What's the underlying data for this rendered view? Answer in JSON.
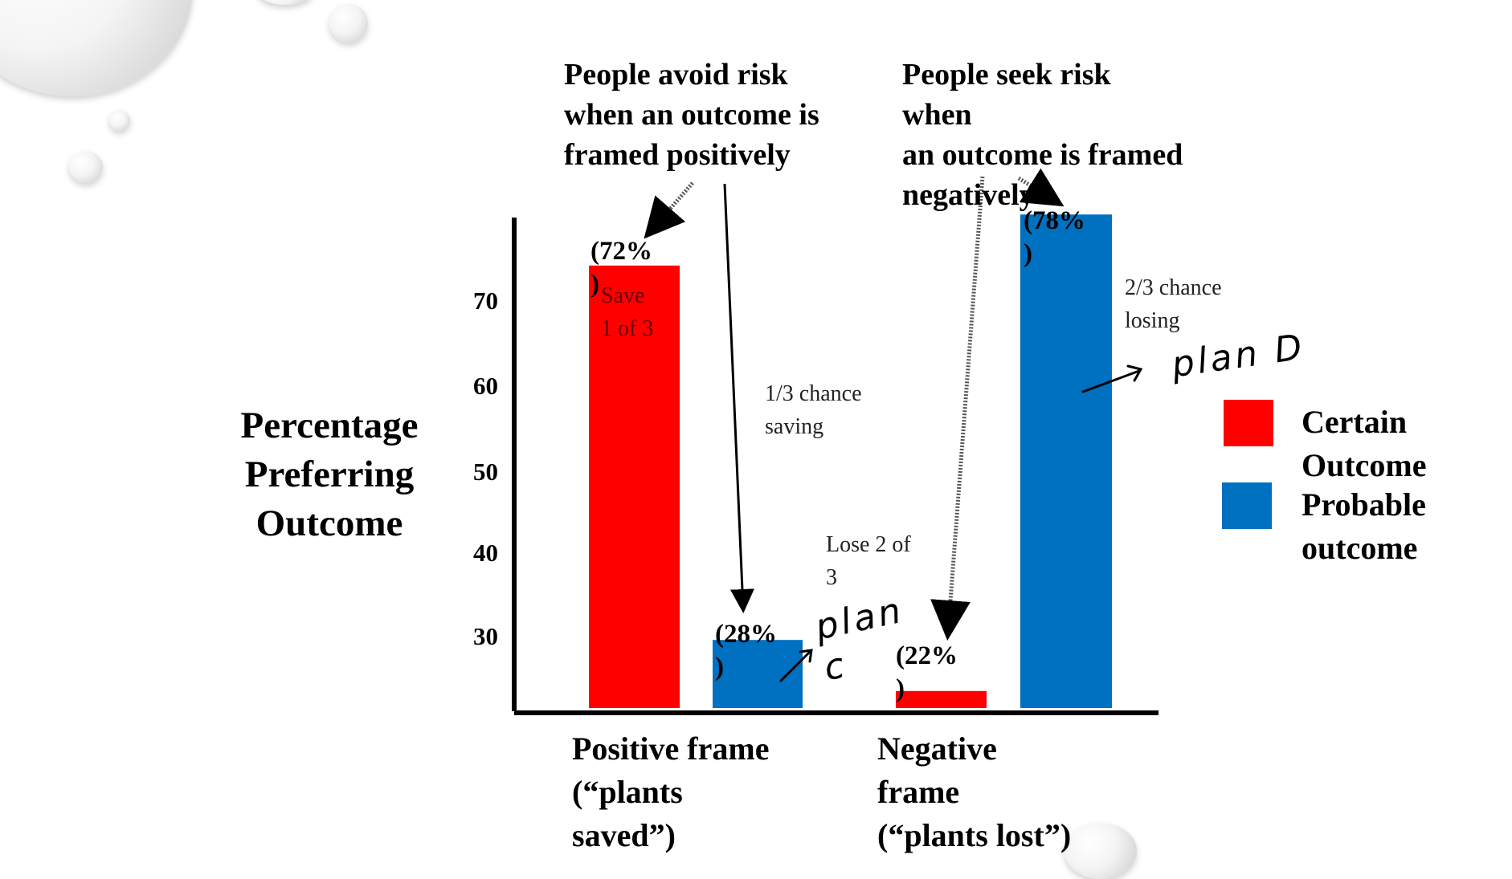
{
  "chart_data": {
    "type": "bar",
    "categories": [
      "Positive frame\n(“plants\nsaved”)",
      "Negative\nframe\n(“plants lost”)"
    ],
    "series": [
      {
        "name": "Certain\nOutcome",
        "color": "#ff0000",
        "values": [
          72,
          22
        ],
        "labels": [
          "(72%\n)",
          "(22%\n)"
        ]
      },
      {
        "name": "Probable\noutcome",
        "color": "#0070c0",
        "values": [
          28,
          78
        ],
        "labels": [
          "(28%\n)",
          "(78%\n)"
        ]
      }
    ],
    "ylabel": "Percentage\nPreferring\nOutcome",
    "yticks": [
      30,
      40,
      50,
      60,
      70
    ],
    "ylim": [
      20,
      80
    ]
  },
  "annotations": {
    "avoid_risk": "People avoid risk\nwhen an outcome is\nframed positively",
    "seek_risk": "People seek risk\nwhen\nan outcome is framed\nnegatively",
    "save_1_of_3": "Save\n1 of 3",
    "one_third_saving": "1/3 chance\nsaving",
    "lose_2_of_3": "Lose 2 of\n3",
    "two_third_losing": "2/3 chance\nlosing",
    "hand_plan_c": "plan\nc",
    "hand_plan_d": "plan D"
  }
}
